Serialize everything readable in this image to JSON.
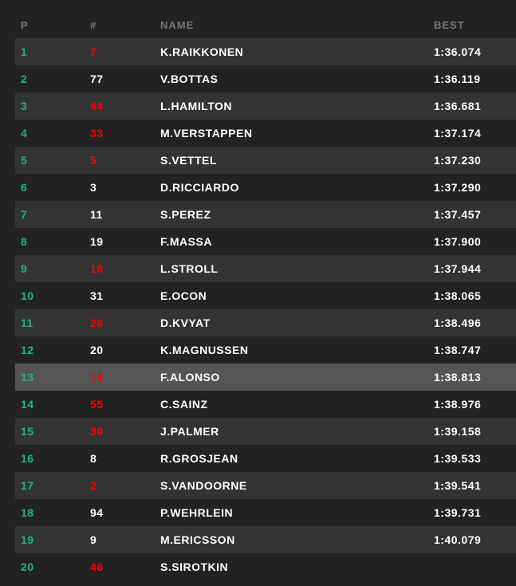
{
  "columns": {
    "pos": "P",
    "num": "#",
    "name": "NAME",
    "best": "BEST"
  },
  "colors": {
    "position": "#1fb47f",
    "number_red": "#ff0000",
    "text": "#ffffff",
    "header": "#777777",
    "background": "#222222",
    "alt_row": "#333333",
    "highlight_row": "#555555"
  },
  "highlighted_position": 13,
  "rows": [
    {
      "pos": "1",
      "num": "7",
      "red": true,
      "name": "K.RAIKKONEN",
      "best": "1:36.074"
    },
    {
      "pos": "2",
      "num": "77",
      "red": false,
      "name": "V.BOTTAS",
      "best": "1:36.119"
    },
    {
      "pos": "3",
      "num": "44",
      "red": true,
      "name": "L.HAMILTON",
      "best": "1:36.681"
    },
    {
      "pos": "4",
      "num": "33",
      "red": true,
      "name": "M.VERSTAPPEN",
      "best": "1:37.174"
    },
    {
      "pos": "5",
      "num": "5",
      "red": true,
      "name": "S.VETTEL",
      "best": "1:37.230"
    },
    {
      "pos": "6",
      "num": "3",
      "red": false,
      "name": "D.RICCIARDO",
      "best": "1:37.290"
    },
    {
      "pos": "7",
      "num": "11",
      "red": false,
      "name": "S.PEREZ",
      "best": "1:37.457"
    },
    {
      "pos": "8",
      "num": "19",
      "red": false,
      "name": "F.MASSA",
      "best": "1:37.900"
    },
    {
      "pos": "9",
      "num": "18",
      "red": true,
      "name": "L.STROLL",
      "best": "1:37.944"
    },
    {
      "pos": "10",
      "num": "31",
      "red": false,
      "name": "E.OCON",
      "best": "1:38.065"
    },
    {
      "pos": "11",
      "num": "26",
      "red": true,
      "name": "D.KVYAT",
      "best": "1:38.496"
    },
    {
      "pos": "12",
      "num": "20",
      "red": false,
      "name": "K.MAGNUSSEN",
      "best": "1:38.747"
    },
    {
      "pos": "13",
      "num": "14",
      "red": true,
      "name": "F.ALONSO",
      "best": "1:38.813"
    },
    {
      "pos": "14",
      "num": "55",
      "red": true,
      "name": "C.SAINZ",
      "best": "1:38.976"
    },
    {
      "pos": "15",
      "num": "30",
      "red": true,
      "name": "J.PALMER",
      "best": "1:39.158"
    },
    {
      "pos": "16",
      "num": "8",
      "red": false,
      "name": "R.GROSJEAN",
      "best": "1:39.533"
    },
    {
      "pos": "17",
      "num": "2",
      "red": true,
      "name": "S.VANDOORNE",
      "best": "1:39.541"
    },
    {
      "pos": "18",
      "num": "94",
      "red": false,
      "name": "P.WEHRLEIN",
      "best": "1:39.731"
    },
    {
      "pos": "19",
      "num": "9",
      "red": false,
      "name": "M.ERICSSON",
      "best": "1:40.079"
    },
    {
      "pos": "20",
      "num": "46",
      "red": true,
      "name": "S.SIROTKIN",
      "best": ""
    }
  ]
}
